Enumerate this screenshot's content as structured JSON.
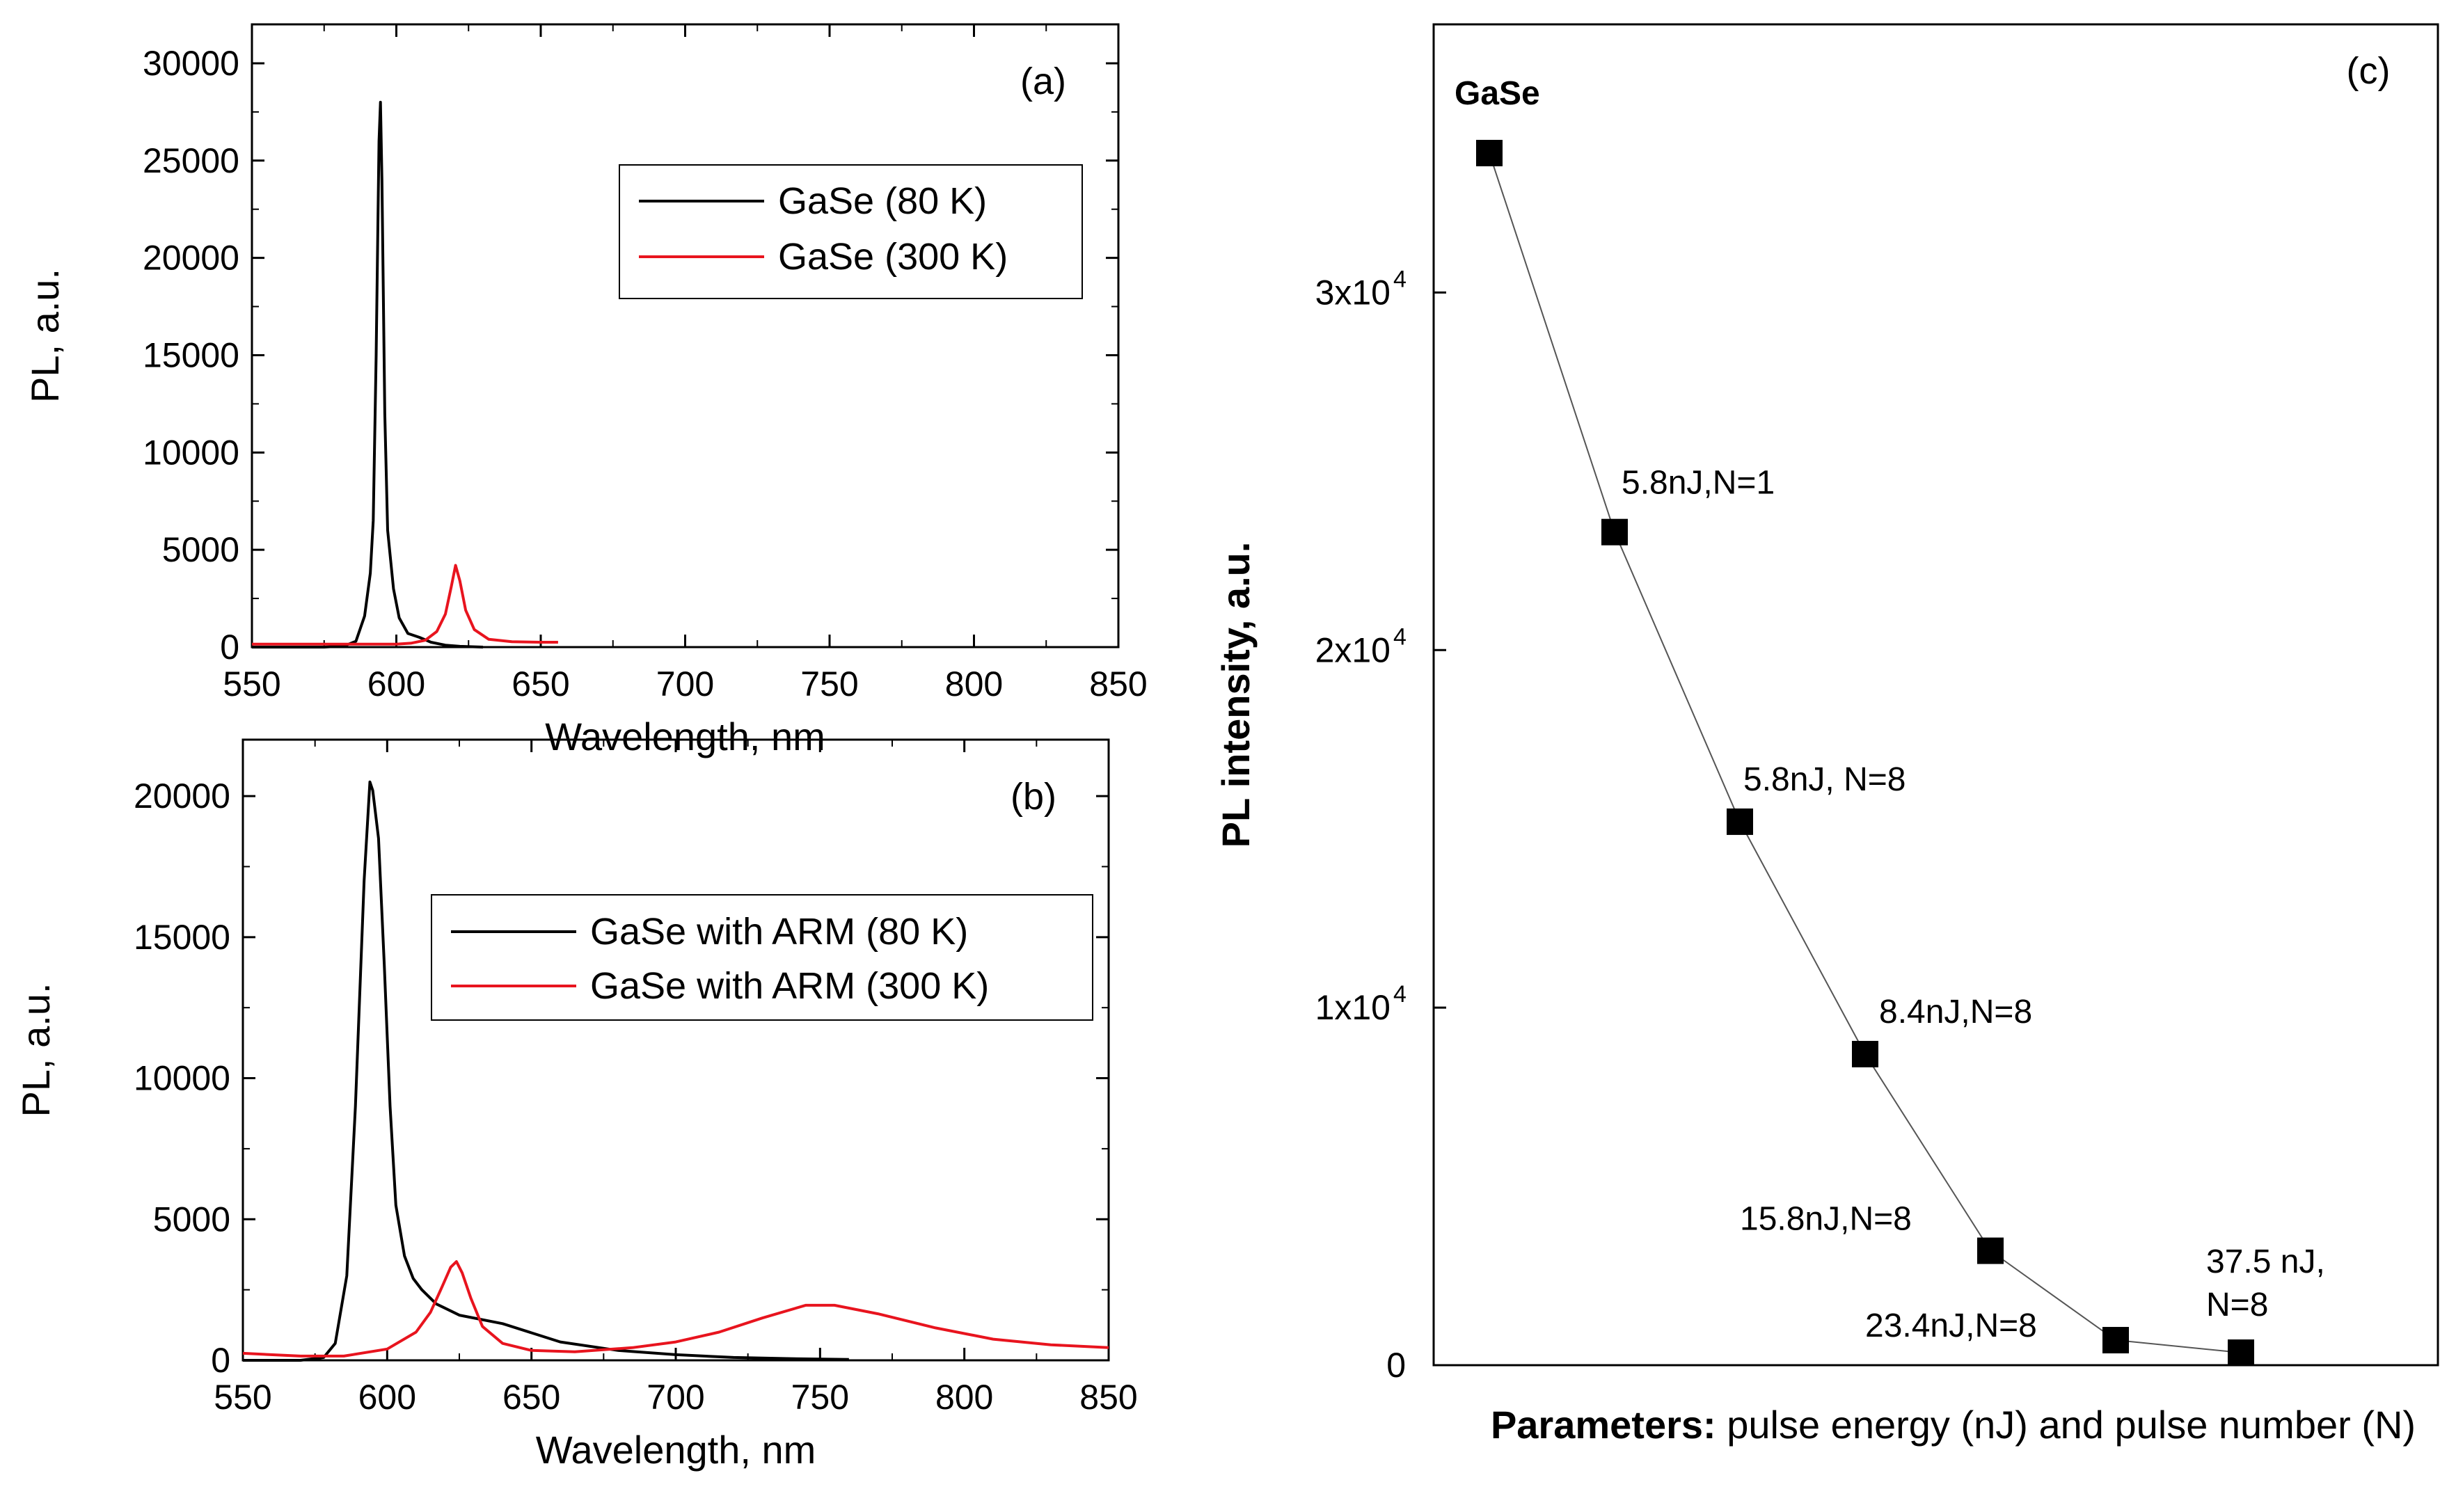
{
  "colors": {
    "series_80K": "#000000",
    "series_300K": "#e8141e"
  },
  "chart_data": [
    {
      "type": "line",
      "panel_label": "(a)",
      "xlabel": "Wavelength, nm",
      "ylabel": "PL, a.u.",
      "xlim": [
        550,
        850
      ],
      "ylim": [
        0,
        32000
      ],
      "xticks": [
        550,
        600,
        650,
        700,
        750,
        800,
        850
      ],
      "yticks": [
        0,
        5000,
        10000,
        15000,
        20000,
        25000,
        30000
      ],
      "legend_position": "upper-right",
      "series": [
        {
          "name": "GaSe (80 K)",
          "color": "#000000",
          "x": [
            550,
            575,
            582,
            586,
            589,
            591,
            592,
            593,
            594,
            594.5,
            595,
            596,
            597,
            599,
            601,
            604,
            608,
            612,
            617,
            622,
            630
          ],
          "y": [
            0,
            0,
            60,
            300,
            1600,
            3800,
            6500,
            15000,
            26000,
            28000,
            24000,
            12000,
            6000,
            3000,
            1500,
            700,
            500,
            250,
            100,
            40,
            0
          ]
        },
        {
          "name": "GaSe (300 K)",
          "color": "#e8141e",
          "x": [
            550,
            600,
            605,
            610,
            614,
            617,
            619,
            620.5,
            622,
            624,
            627,
            632,
            640,
            650,
            656
          ],
          "y": [
            150,
            150,
            200,
            350,
            800,
            1700,
            3100,
            4200,
            3400,
            1900,
            900,
            400,
            280,
            250,
            250
          ]
        }
      ]
    },
    {
      "type": "line",
      "panel_label": "(b)",
      "xlabel": "Wavelength, nm",
      "ylabel": "PL, a.u.",
      "xlim": [
        550,
        850
      ],
      "ylim": [
        0,
        22000
      ],
      "xticks": [
        550,
        600,
        650,
        700,
        750,
        800,
        850
      ],
      "yticks": [
        0,
        5000,
        10000,
        15000,
        20000
      ],
      "legend_position": "upper-right",
      "series": [
        {
          "name": "GaSe with ARM (80 K)",
          "color": "#000000",
          "x": [
            550,
            570,
            578,
            582,
            586,
            589,
            592,
            594,
            595,
            597,
            599,
            601,
            603,
            606,
            609,
            612,
            617,
            625,
            640,
            660,
            680,
            700,
            720,
            740,
            760
          ],
          "y": [
            0,
            0,
            100,
            600,
            3000,
            9000,
            17000,
            20500,
            20200,
            18500,
            14000,
            9000,
            5500,
            3700,
            2900,
            2500,
            2000,
            1600,
            1300,
            650,
            350,
            200,
            100,
            60,
            30
          ]
        },
        {
          "name": "GaSe with ARM (300 K)",
          "color": "#e8141e",
          "x": [
            550,
            570,
            585,
            600,
            610,
            615,
            619,
            622,
            624,
            626,
            629,
            633,
            640,
            650,
            665,
            685,
            700,
            715,
            730,
            745,
            755,
            770,
            790,
            810,
            830,
            850
          ],
          "y": [
            250,
            150,
            150,
            400,
            1000,
            1700,
            2600,
            3300,
            3500,
            3100,
            2200,
            1200,
            600,
            350,
            300,
            450,
            650,
            1000,
            1500,
            1950,
            1950,
            1650,
            1150,
            750,
            550,
            450
          ]
        }
      ]
    },
    {
      "type": "scatter",
      "panel_label": "(c)",
      "xlabel_bold": "Parameters:",
      "xlabel_rest": " pulse energy (nJ) and pulse number (N)",
      "ylabel": "PL intensity, a.u.",
      "ylim": [
        0,
        37500
      ],
      "yticks": [
        0,
        10000,
        20000,
        30000
      ],
      "ytick_labels": [
        "0",
        "1x10",
        "2x10",
        "3x10"
      ],
      "ytick_exponents": [
        "",
        "4",
        "4",
        "4"
      ],
      "points": [
        {
          "label": "GaSe",
          "y": 33900
        },
        {
          "label": "5.8nJ,N=1",
          "y": 23300
        },
        {
          "label": "5.8nJ, N=8",
          "y": 15200
        },
        {
          "label": "8.4nJ,N=8",
          "y": 8700
        },
        {
          "label": "15.8nJ,N=8",
          "y": 3200
        },
        {
          "label": "23.4nJ,N=8",
          "y": 700
        },
        {
          "label": "37.5 nJ,",
          "label_line2": "N=8",
          "y": 350
        }
      ]
    }
  ]
}
